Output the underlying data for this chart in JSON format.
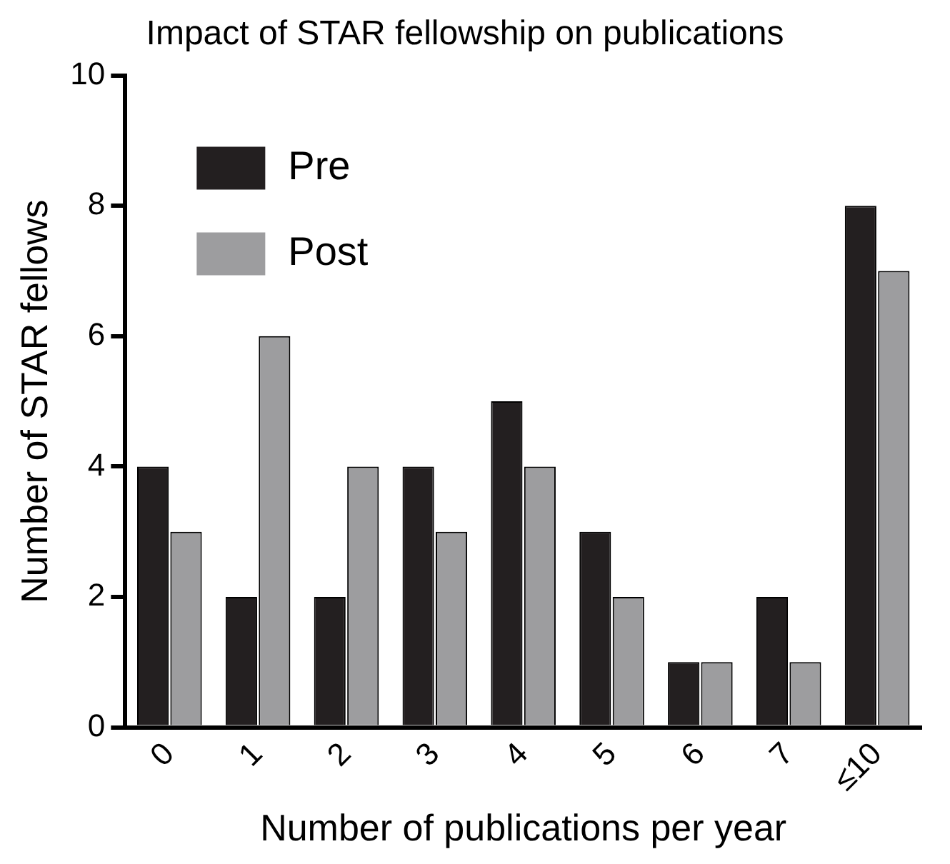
{
  "chart_data": {
    "type": "bar",
    "title": "Impact of STAR fellowship on publications",
    "xlabel": "Number of publications per year",
    "ylabel": "Number of STAR fellows",
    "categories": [
      "0",
      "1",
      "2",
      "3",
      "4",
      "5",
      "6",
      "7",
      "≤10"
    ],
    "series": [
      {
        "name": "Pre",
        "color": "#231f20",
        "values": [
          4,
          2,
          2,
          4,
          5,
          3,
          1,
          2,
          8
        ]
      },
      {
        "name": "Post",
        "color": "#9d9d9f",
        "values": [
          3,
          6,
          4,
          3,
          4,
          2,
          1,
          1,
          7
        ]
      }
    ],
    "ylim": [
      0,
      10
    ],
    "yticks": [
      0,
      2,
      4,
      6,
      8,
      10
    ],
    "grid": false,
    "legend": "top left"
  }
}
